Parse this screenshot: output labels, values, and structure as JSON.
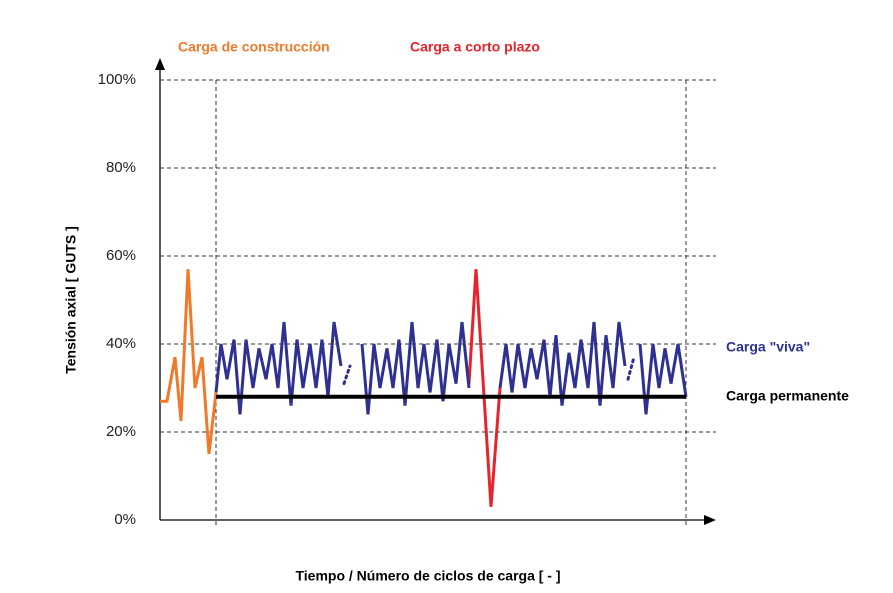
{
  "chart_data": {
    "type": "line",
    "ylabel": "Tensión axial  [ GUTS ]",
    "xlabel": "Tiempo / Número de ciclos de carga  [ - ]",
    "annotations": [
      "Carga de construcción",
      "Carga a corto plazo"
    ],
    "ylim": [
      0,
      100
    ],
    "xlim": [
      0,
      550
    ],
    "yticks": [
      {
        "value": 0,
        "label": "0%"
      },
      {
        "value": 20,
        "label": "20%"
      },
      {
        "value": 40,
        "label": "40%"
      },
      {
        "value": 60,
        "label": "60%"
      },
      {
        "value": 80,
        "label": "80%"
      },
      {
        "value": 100,
        "label": "100%"
      }
    ],
    "grid": true,
    "series": [
      {
        "name": "Carga de construcción",
        "color": "#f07a2a",
        "x": [
          0,
          7,
          15,
          21,
          28,
          35,
          42,
          49,
          56
        ],
        "values": [
          27,
          27,
          37,
          22.5,
          57,
          30,
          37,
          15,
          29
        ]
      },
      {
        "name": "Carga a corto plazo",
        "color": "#e8232a",
        "x": [
          309,
          316,
          331,
          340
        ],
        "values": [
          31,
          57,
          3,
          30
        ]
      },
      {
        "name": "Carga \"viva\"",
        "color": "#2e3192",
        "x": [
          56,
          61,
          67,
          74,
          80,
          86,
          93,
          99,
          106,
          112,
          118,
          124,
          131,
          137,
          143,
          150,
          156,
          162,
          168,
          174,
          181,
          null,
          202,
          208,
          214,
          220,
          227,
          233,
          239,
          245,
          252,
          258,
          264,
          270,
          277,
          283,
          289,
          296,
          302,
          309,
          null,
          340,
          346,
          352,
          358,
          365,
          371,
          377,
          384,
          390,
          396,
          402,
          409,
          415,
          421,
          428,
          434,
          440,
          446,
          453,
          459,
          465,
          null,
          480,
          486,
          493,
          499,
          505,
          511,
          518,
          526
        ],
        "values": [
          29,
          40,
          32,
          41,
          24,
          41,
          30,
          39,
          32,
          40,
          30,
          45,
          26,
          41,
          30,
          40,
          30,
          41,
          28,
          45,
          35,
          null,
          40,
          24,
          40,
          30,
          39,
          30,
          41,
          26,
          45,
          30,
          40,
          29,
          41,
          27,
          40,
          31,
          45,
          30,
          null,
          30,
          40,
          29,
          40,
          30,
          39,
          32,
          41,
          28,
          42,
          26,
          38,
          30,
          41,
          30,
          45,
          26,
          42,
          30,
          45,
          35,
          null,
          40,
          24,
          40,
          30,
          39,
          31,
          40,
          28
        ]
      },
      {
        "color": "#2e3192",
        "dotted": true,
        "x": [
          184,
          190,
          null,
          468,
          474
        ],
        "values": [
          31,
          35,
          null,
          32,
          37
        ]
      },
      {
        "name": "Carga permanente",
        "color": "#000000",
        "width": 4,
        "x": [
          56,
          526
        ],
        "values": [
          28,
          28
        ]
      }
    ]
  }
}
